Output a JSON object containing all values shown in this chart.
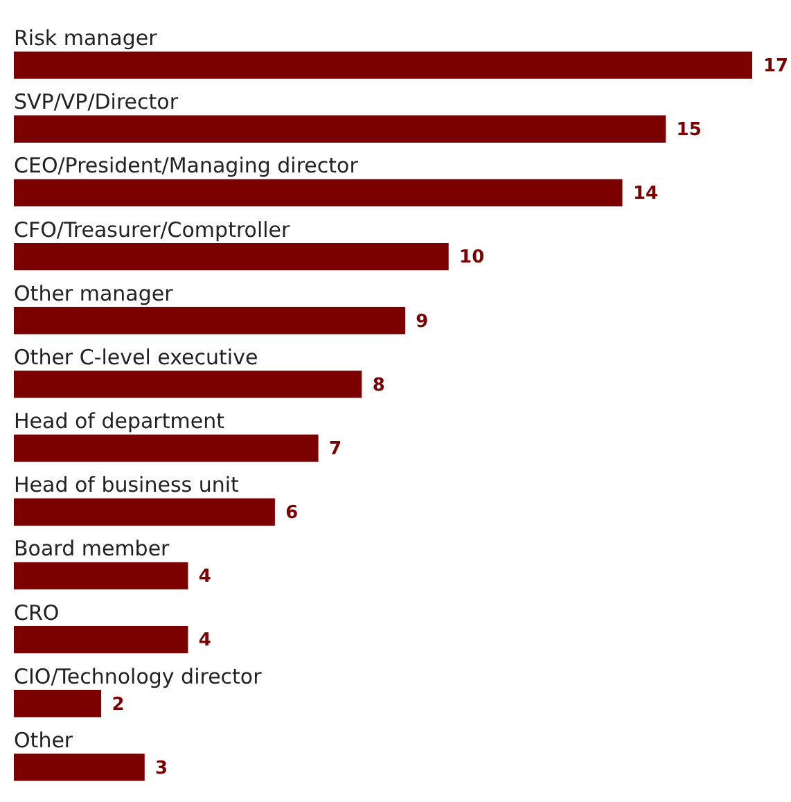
{
  "chart_data": {
    "type": "bar",
    "orientation": "horizontal",
    "categories": [
      "Risk manager",
      "SVP/VP/Director",
      "CEO/President/Managing director",
      "CFO/Treasurer/Comptroller",
      "Other manager",
      "Other C-level executive",
      "Head of department",
      "Head of business unit",
      "Board member",
      "CRO",
      "CIO/Technology director",
      "Other"
    ],
    "values": [
      17,
      15,
      14,
      10,
      9,
      8,
      7,
      6,
      4,
      4,
      2,
      3
    ],
    "color": "#7b0000",
    "data_labels": true
  }
}
